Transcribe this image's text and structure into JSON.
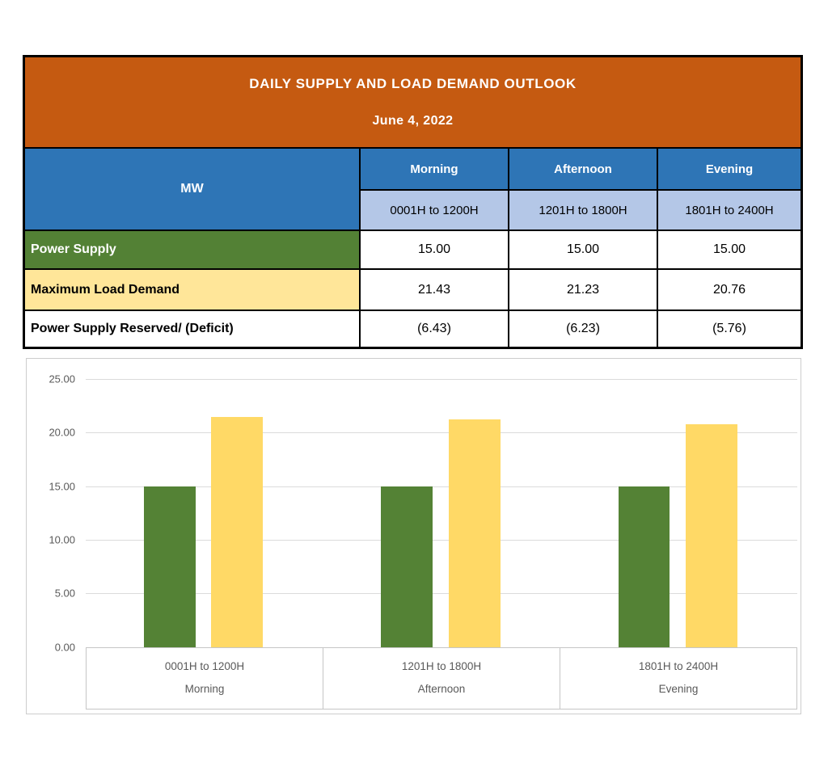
{
  "table": {
    "title": "DAILY SUPPLY AND LOAD DEMAND OUTLOOK",
    "date": "June 4, 2022",
    "unit": "MW",
    "columns": [
      {
        "label": "Morning",
        "time": "0001H to 1200H"
      },
      {
        "label": "Afternoon",
        "time": "1201H to 1800H"
      },
      {
        "label": "Evening",
        "time": "1801H to 2400H"
      }
    ],
    "rows": [
      {
        "label": "Power Supply",
        "values": [
          "15.00",
          "15.00",
          "15.00"
        ]
      },
      {
        "label": "Maximum Load Demand",
        "values": [
          "21.43",
          "21.23",
          "20.76"
        ]
      },
      {
        "label": "Power Supply Reserved/ (Deficit)",
        "values": [
          "(6.43)",
          "(6.23)",
          "(5.76)"
        ]
      }
    ]
  },
  "chart_data": {
    "type": "bar",
    "categories": [
      "0001H to 1200H",
      "1201H to 1800H",
      "1801H to 2400H"
    ],
    "category_sublabels": [
      "Morning",
      "Afternoon",
      "Evening"
    ],
    "series": [
      {
        "name": "Power Supply",
        "values": [
          15.0,
          15.0,
          15.0
        ],
        "color": "#548235"
      },
      {
        "name": "Maximum Load Demand",
        "values": [
          21.43,
          21.23,
          20.76
        ],
        "color": "#FFD966"
      }
    ],
    "ylim": [
      0,
      25
    ],
    "ytick_step": 5,
    "yticks": [
      "25.00",
      "20.00",
      "15.00",
      "10.00",
      "5.00",
      "0.00"
    ],
    "grid": true,
    "legend": "none",
    "title": ""
  },
  "colors": {
    "header_orange": "#C55A11",
    "header_blue": "#2E75B6",
    "subheader_blue": "#B4C7E7",
    "row_green": "#538135",
    "row_yellow": "#FFE699",
    "bar_green": "#548235",
    "bar_yellow": "#FFD966",
    "chart_text_gray": "#595959"
  }
}
